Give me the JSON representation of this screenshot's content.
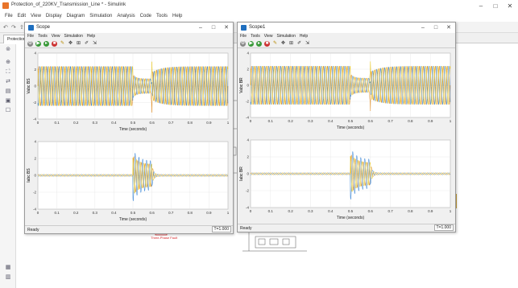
{
  "app": {
    "title": "Protection_of_220KV_Transmission_Line * - Simulink",
    "menu": [
      "File",
      "Edit",
      "View",
      "Display",
      "Diagram",
      "Simulation",
      "Analysis",
      "Code",
      "Tools",
      "Help"
    ],
    "tab_label": "Protection_of"
  },
  "scope1": {
    "title": "Scope",
    "menu": [
      "File",
      "Tools",
      "View",
      "Simulation",
      "Help"
    ],
    "status": "Ready",
    "time": "T=1.000",
    "top_ylabel": "Vabc BS",
    "bottom_ylabel": "Iabc BS",
    "xlabel": "Time (seconds)"
  },
  "scope2": {
    "title": "Scope1",
    "menu": [
      "File",
      "Tools",
      "View",
      "Simulation",
      "Help"
    ],
    "status": "Ready",
    "time": "T=1.000",
    "top_ylabel": "Vabc BR",
    "bottom_ylabel": "Iabc BR",
    "xlabel": "Time (seconds)"
  },
  "diagram": {
    "fault_label": "Three-Phase Fault"
  },
  "colors": {
    "phase_a": "#e08a1e",
    "phase_b": "#2e7fd6",
    "phase_c": "#e7c414",
    "fault_red": "#d8262a"
  },
  "chart_data": [
    {
      "type": "line",
      "panel": "scope1-top",
      "x_range": [
        0,
        1
      ],
      "y_range": [
        -4,
        4
      ],
      "y_ticks": [
        -4,
        -2,
        0,
        2,
        4
      ],
      "x_ticks": [
        0,
        0.1,
        0.2,
        0.3,
        0.4,
        0.5,
        0.6,
        0.7,
        0.8,
        0.9,
        1
      ],
      "xlabel": "Time (seconds)",
      "ylabel": "Vabc BS",
      "fault_window": [
        0.5,
        0.6
      ]
    },
    {
      "type": "line",
      "panel": "scope1-bottom",
      "x_range": [
        0,
        1
      ],
      "y_range": [
        -4,
        4
      ],
      "y_ticks": [
        -4,
        -2,
        0,
        2,
        4
      ],
      "x_ticks": [
        0,
        0.1,
        0.2,
        0.3,
        0.4,
        0.5,
        0.6,
        0.7,
        0.8,
        0.9,
        1
      ],
      "xlabel": "Time (seconds)",
      "ylabel": "Iabc BS",
      "fault_window": [
        0.5,
        0.6
      ]
    },
    {
      "type": "line",
      "panel": "scope2-top",
      "x_range": [
        0,
        1
      ],
      "y_range": [
        -4,
        4
      ],
      "y_ticks": [
        -4,
        -2,
        0,
        2,
        4
      ],
      "x_ticks": [
        0,
        0.1,
        0.2,
        0.3,
        0.4,
        0.5,
        0.6,
        0.7,
        0.8,
        0.9,
        1
      ],
      "xlabel": "Time (seconds)",
      "ylabel": "Vabc BR",
      "fault_window": [
        0.5,
        0.6
      ]
    },
    {
      "type": "line",
      "panel": "scope2-bottom",
      "x_range": [
        0,
        1
      ],
      "y_range": [
        -4,
        4
      ],
      "y_ticks": [
        -4,
        -2,
        0,
        2,
        4
      ],
      "x_ticks": [
        0,
        0.1,
        0.2,
        0.3,
        0.4,
        0.5,
        0.6,
        0.7,
        0.8,
        0.9,
        1
      ],
      "xlabel": "Time (seconds)",
      "ylabel": "Iabc BR",
      "fault_window": [
        0.5,
        0.6
      ]
    }
  ]
}
